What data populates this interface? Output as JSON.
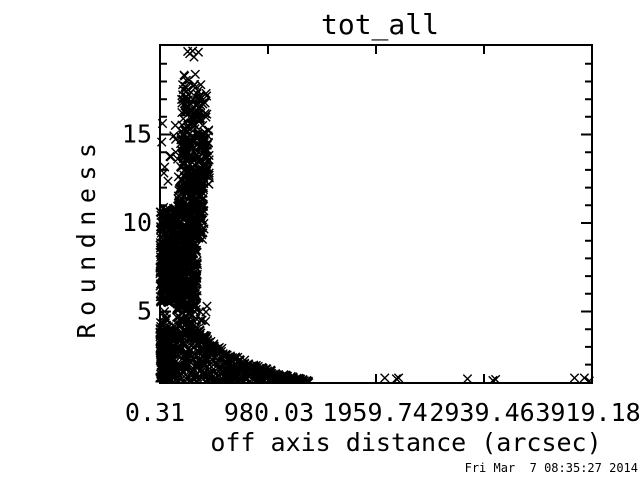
{
  "page": {
    "background": "#ffffff",
    "foreground": "#000000"
  },
  "footer": {
    "timestamp": "Fri Mar  7 08:35:27 2014"
  },
  "chart_data": {
    "type": "scatter",
    "title": "tot_all",
    "xlabel": "off axis distance (arcsec)",
    "ylabel": "Roundness",
    "marker": "x",
    "marker_color": "#000000",
    "grid": false,
    "xlim": [
      0.31,
      3919.18
    ],
    "ylim": [
      0.96,
      20.06
    ],
    "xticks": [
      0.31,
      980.03,
      1959.74,
      2939.46,
      3919.18
    ],
    "xtick_labels": [
      "0.31",
      "980.03",
      "1959.74",
      "2939.46",
      "3919.18"
    ],
    "yticks_major": [
      5,
      10,
      15
    ],
    "ytick_labels": [
      "5",
      "10",
      "15"
    ],
    "y_minor_step": 1,
    "seed": 20140307,
    "clusters": [
      {
        "name": "column-top-sparse",
        "n": 5,
        "x": [
          230,
          370
        ],
        "y": [
          19.3,
          20.05
        ]
      },
      {
        "name": "column-top-gap",
        "n": 5,
        "x": [
          215,
          400
        ],
        "y": [
          17.8,
          19.1
        ]
      },
      {
        "name": "column-upper-band",
        "n": 85,
        "x": [
          195,
          430
        ],
        "y": [
          15.3,
          17.9
        ]
      },
      {
        "name": "column-mid-band",
        "n": 220,
        "x": [
          185,
          450
        ],
        "y": [
          12.0,
          15.3
        ]
      },
      {
        "name": "left-strays-mid",
        "n": 14,
        "x": [
          0,
          175
        ],
        "y": [
          12.2,
          15.7
        ]
      },
      {
        "name": "column-9-12",
        "n": 260,
        "x": [
          160,
          400
        ],
        "y": [
          8.9,
          12.05
        ]
      },
      {
        "name": "left-edge-block",
        "n": 130,
        "x": [
          0,
          150
        ],
        "y": [
          8.4,
          10.9
        ]
      },
      {
        "name": "left-mass",
        "n": 280,
        "x": [
          0,
          200
        ],
        "y": [
          5.5,
          8.45
        ]
      },
      {
        "name": "column-lower",
        "n": 260,
        "x": [
          140,
          340
        ],
        "y": [
          5.1,
          8.9
        ]
      },
      {
        "name": "left-edge-strays-low",
        "n": 20,
        "x": [
          0,
          60
        ],
        "y": [
          2.0,
          5.2
        ]
      },
      {
        "name": "peak-fringe",
        "n": 18,
        "x": [
          150,
          430
        ],
        "y": [
          4.4,
          5.4
        ]
      }
    ],
    "wedge": {
      "name": "bottom-dense-wedge",
      "n": 800,
      "x_max": 1350,
      "x_pow": 1.6,
      "boundary_x": [
        0,
        150,
        230,
        300,
        450,
        640,
        900,
        1150,
        1350
      ],
      "boundary_y": [
        4.0,
        4.3,
        5.3,
        4.6,
        3.4,
        2.6,
        1.9,
        1.4,
        1.1
      ],
      "y_min": 0.97
    },
    "outliers": [
      [
        2040,
        1.25
      ],
      [
        2145,
        1.2
      ],
      [
        2165,
        1.25
      ],
      [
        2790,
        1.2
      ],
      [
        3020,
        1.1
      ],
      [
        3045,
        1.16
      ],
      [
        3760,
        1.25
      ],
      [
        3850,
        1.25
      ],
      [
        3895,
        1.08
      ]
    ]
  }
}
